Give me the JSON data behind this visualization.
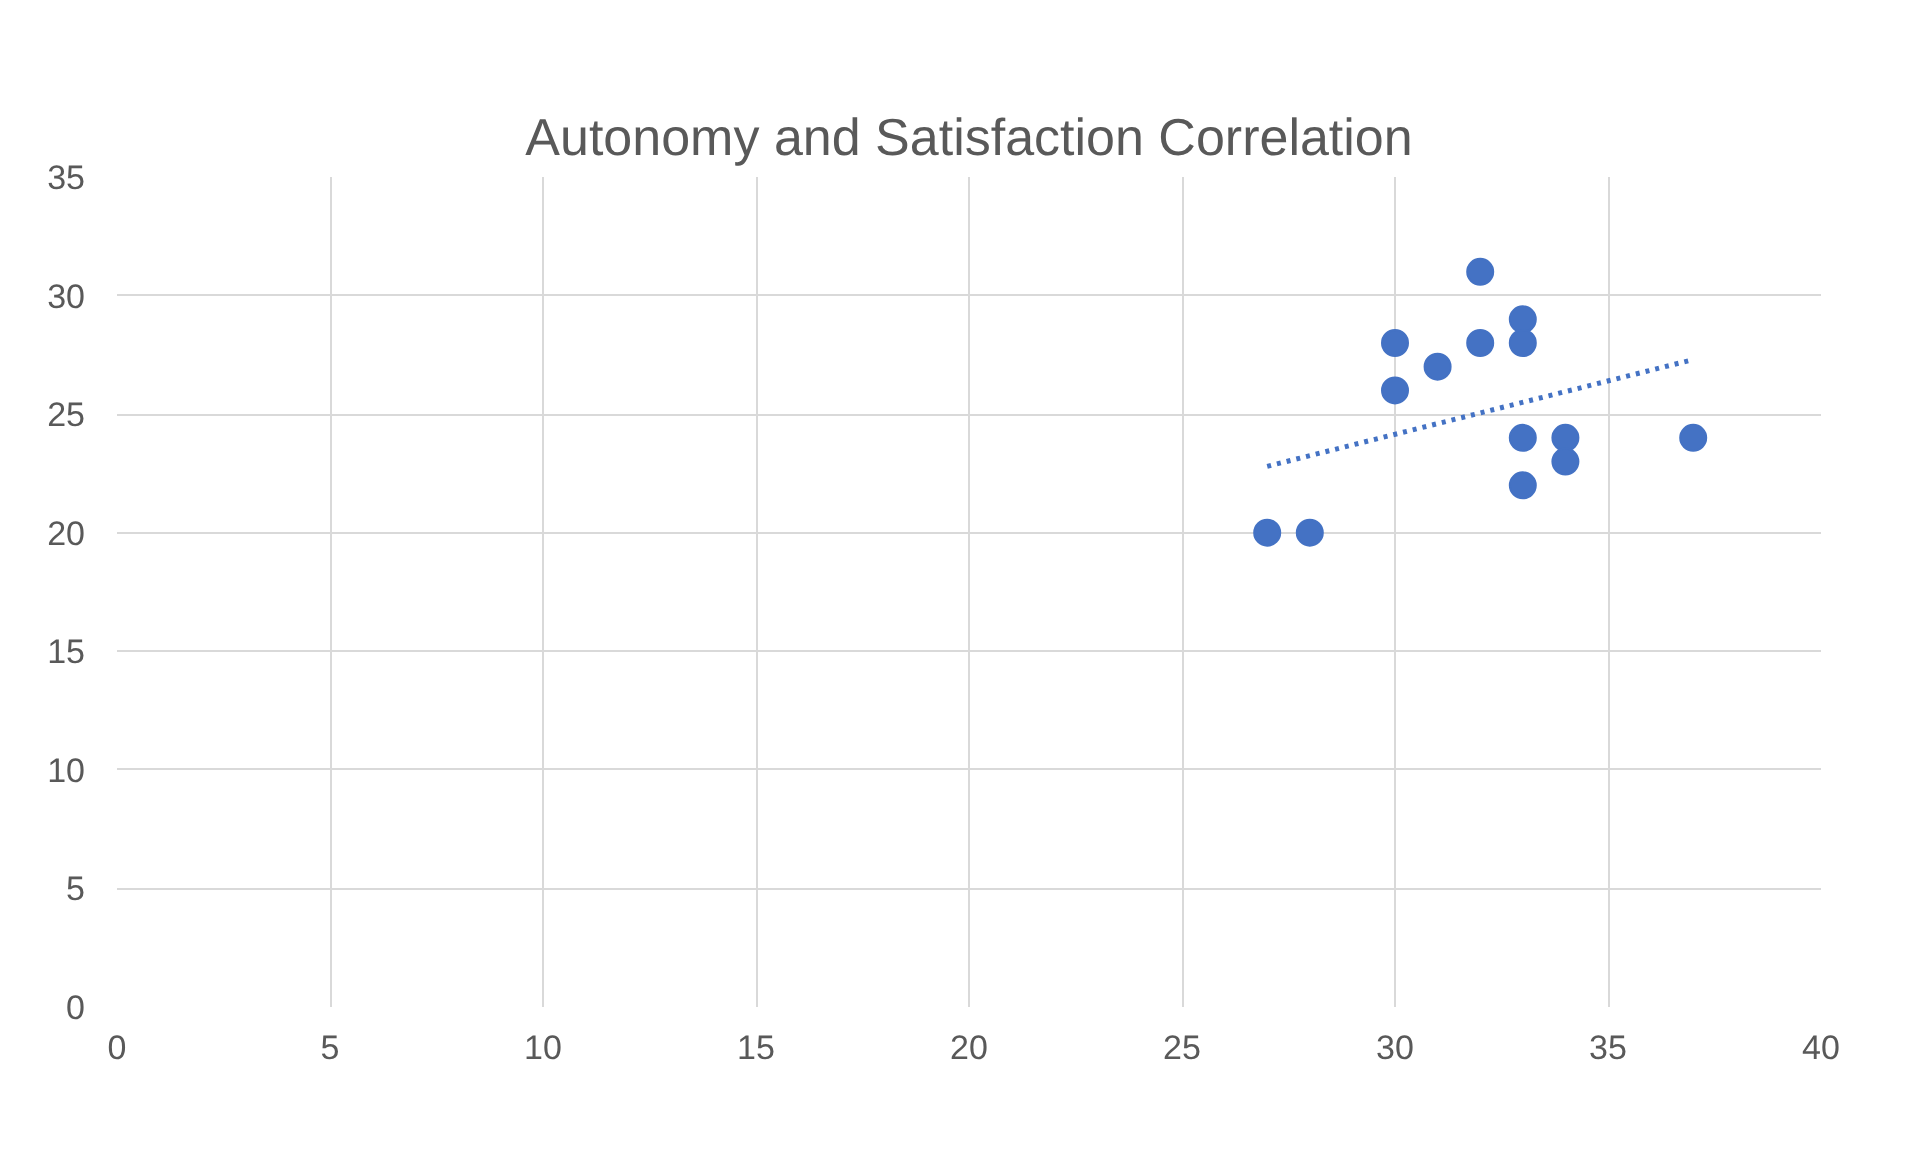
{
  "chart_data": {
    "type": "scatter",
    "title": "Autonomy and Satisfaction Correlation",
    "xlim": [
      0,
      40
    ],
    "ylim": [
      0,
      35
    ],
    "xticks": [
      0,
      5,
      10,
      15,
      20,
      25,
      30,
      35,
      40
    ],
    "yticks": [
      0,
      5,
      10,
      15,
      20,
      25,
      30,
      35
    ],
    "grid": true,
    "marker": "circle",
    "series": [
      {
        "color": "#4472c4",
        "x": [
          27,
          28,
          30,
          30,
          31,
          32,
          32,
          33,
          33,
          33,
          33,
          34,
          34,
          37
        ],
        "values": [
          20,
          20,
          28,
          26,
          27,
          31,
          28,
          29,
          28,
          24,
          22,
          24,
          23,
          24
        ]
      },
      {
        "type": "line",
        "color": "#4472c4",
        "line_style": "dotted",
        "marker": "none",
        "x": [
          27,
          37
        ],
        "values": [
          22.8,
          27.3
        ]
      }
    ]
  }
}
